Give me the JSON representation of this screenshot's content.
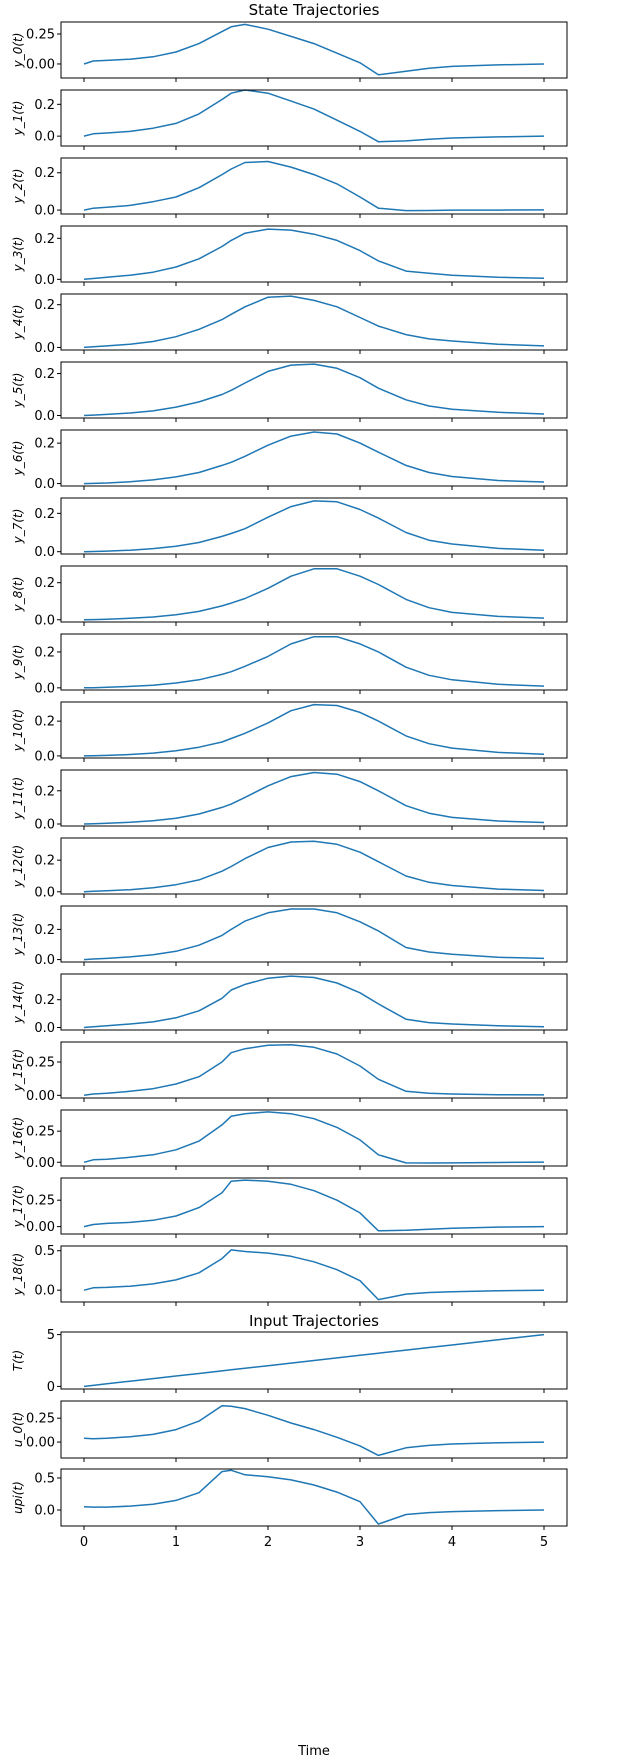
{
  "chart_data": {
    "type": "line",
    "state_title": "State Trajectories",
    "input_title": "Input Trajectories",
    "xlabel": "Time",
    "xlim": [
      -0.25,
      5.25
    ],
    "xticks": [
      0,
      1,
      2,
      3,
      4,
      5
    ],
    "grid": false,
    "line_color": "#1f77b4",
    "x": [
      0,
      0.1,
      0.25,
      0.5,
      0.75,
      1,
      1.25,
      1.5,
      1.6,
      1.75,
      2,
      2.25,
      2.5,
      2.75,
      3,
      3.2,
      3.5,
      3.75,
      4,
      4.5,
      5
    ],
    "panels": [
      {
        "group": "state",
        "ylabel": "y_0(t)",
        "ylim": [
          -0.117,
          0.35
        ],
        "yticks": [
          0,
          0.25
        ],
        "yticklabels": [
          "0.00",
          "0.25"
        ],
        "values": [
          0,
          0.025,
          0.03,
          0.04,
          0.06,
          0.1,
          0.17,
          0.27,
          0.31,
          0.33,
          0.29,
          0.23,
          0.17,
          0.09,
          0.01,
          -0.09,
          -0.06,
          -0.035,
          -0.02,
          -0.008,
          0
        ]
      },
      {
        "group": "state",
        "ylabel": "y_1(t)",
        "ylim": [
          -0.062,
          0.29
        ],
        "yticks": [
          0,
          0.2
        ],
        "yticklabels": [
          "0.0",
          "0.2"
        ],
        "values": [
          0,
          0.015,
          0.02,
          0.03,
          0.05,
          0.08,
          0.14,
          0.23,
          0.27,
          0.29,
          0.27,
          0.22,
          0.17,
          0.1,
          0.03,
          -0.035,
          -0.03,
          -0.02,
          -0.012,
          -0.005,
          0
        ]
      },
      {
        "group": "state",
        "ylabel": "y_2(t)",
        "ylim": [
          -0.021,
          0.279
        ],
        "yticks": [
          0,
          0.2
        ],
        "yticklabels": [
          "0.0",
          "0.2"
        ],
        "values": [
          0,
          0.01,
          0.015,
          0.025,
          0.045,
          0.07,
          0.12,
          0.19,
          0.22,
          0.255,
          0.26,
          0.23,
          0.19,
          0.14,
          0.07,
          0.01,
          -0.003,
          -0.002,
          0,
          0,
          0.001
        ]
      },
      {
        "group": "state",
        "ylabel": "y_3(t)",
        "ylim": [
          -0.013,
          0.26
        ],
        "yticks": [
          0,
          0.2
        ],
        "yticklabels": [
          "0.0",
          "0.2"
        ],
        "values": [
          0,
          0.004,
          0.01,
          0.02,
          0.035,
          0.06,
          0.1,
          0.16,
          0.19,
          0.225,
          0.245,
          0.24,
          0.22,
          0.19,
          0.14,
          0.09,
          0.04,
          0.03,
          0.02,
          0.01,
          0.005
        ]
      },
      {
        "group": "state",
        "ylabel": "y_4(t)",
        "ylim": [
          -0.012,
          0.25
        ],
        "yticks": [
          0,
          0.2
        ],
        "yticklabels": [
          "0.0",
          "0.2"
        ],
        "values": [
          0,
          0.003,
          0.007,
          0.015,
          0.028,
          0.05,
          0.085,
          0.13,
          0.155,
          0.19,
          0.235,
          0.24,
          0.22,
          0.19,
          0.14,
          0.1,
          0.06,
          0.04,
          0.03,
          0.015,
          0.007
        ]
      },
      {
        "group": "state",
        "ylabel": "y_5(t)",
        "ylim": [
          -0.012,
          0.255
        ],
        "yticks": [
          0,
          0.2
        ],
        "yticklabels": [
          "0.0",
          "0.2"
        ],
        "values": [
          0,
          0.002,
          0.005,
          0.012,
          0.022,
          0.04,
          0.065,
          0.1,
          0.12,
          0.155,
          0.21,
          0.24,
          0.245,
          0.225,
          0.18,
          0.13,
          0.075,
          0.045,
          0.03,
          0.015,
          0.007
        ]
      },
      {
        "group": "state",
        "ylabel": "y_6(t)",
        "ylim": [
          -0.012,
          0.265
        ],
        "yticks": [
          0,
          0.2
        ],
        "yticklabels": [
          "0.0",
          "0.2"
        ],
        "values": [
          0,
          0.001,
          0.003,
          0.009,
          0.018,
          0.033,
          0.055,
          0.09,
          0.105,
          0.135,
          0.19,
          0.235,
          0.255,
          0.245,
          0.2,
          0.155,
          0.09,
          0.055,
          0.035,
          0.015,
          0.008
        ]
      },
      {
        "group": "state",
        "ylabel": "y_7(t)",
        "ylim": [
          -0.012,
          0.28
        ],
        "yticks": [
          0,
          0.2
        ],
        "yticklabels": [
          "0.0",
          "0.2"
        ],
        "values": [
          0,
          0.001,
          0.003,
          0.008,
          0.016,
          0.028,
          0.048,
          0.08,
          0.095,
          0.12,
          0.18,
          0.235,
          0.265,
          0.26,
          0.22,
          0.175,
          0.1,
          0.06,
          0.04,
          0.017,
          0.008
        ]
      },
      {
        "group": "state",
        "ylabel": "y_8(t)",
        "ylim": [
          -0.012,
          0.29
        ],
        "yticks": [
          0,
          0.2
        ],
        "yticklabels": [
          "0.0",
          "0.2"
        ],
        "values": [
          0,
          0.001,
          0.003,
          0.008,
          0.015,
          0.027,
          0.045,
          0.075,
          0.09,
          0.115,
          0.17,
          0.235,
          0.275,
          0.275,
          0.235,
          0.19,
          0.11,
          0.065,
          0.04,
          0.018,
          0.009
        ]
      },
      {
        "group": "state",
        "ylabel": "y_9(t)",
        "ylim": [
          -0.012,
          0.3
        ],
        "yticks": [
          0,
          0.2
        ],
        "yticklabels": [
          "0.0",
          "0.2"
        ],
        "values": [
          0,
          0.001,
          0.003,
          0.008,
          0.015,
          0.027,
          0.045,
          0.075,
          0.09,
          0.12,
          0.175,
          0.245,
          0.285,
          0.285,
          0.245,
          0.2,
          0.115,
          0.07,
          0.045,
          0.02,
          0.01
        ]
      },
      {
        "group": "state",
        "ylabel": "y_10(t)",
        "ylim": [
          -0.012,
          0.31
        ],
        "yticks": [
          0,
          0.2
        ],
        "yticklabels": [
          "0.0",
          "0.2"
        ],
        "values": [
          0,
          0.001,
          0.003,
          0.008,
          0.016,
          0.03,
          0.05,
          0.08,
          0.1,
          0.13,
          0.19,
          0.26,
          0.295,
          0.29,
          0.25,
          0.2,
          0.115,
          0.07,
          0.045,
          0.02,
          0.01
        ]
      },
      {
        "group": "state",
        "ylabel": "y_11(t)",
        "ylim": [
          -0.012,
          0.325
        ],
        "yticks": [
          0,
          0.2
        ],
        "yticklabels": [
          "0.0",
          "0.2"
        ],
        "values": [
          0,
          0.002,
          0.004,
          0.01,
          0.02,
          0.035,
          0.06,
          0.1,
          0.12,
          0.16,
          0.23,
          0.285,
          0.31,
          0.3,
          0.255,
          0.2,
          0.11,
          0.065,
          0.04,
          0.018,
          0.009
        ]
      },
      {
        "group": "state",
        "ylabel": "y_12(t)",
        "ylim": [
          -0.014,
          0.34
        ],
        "yticks": [
          0,
          0.2
        ],
        "yticklabels": [
          "0.0",
          "0.2"
        ],
        "values": [
          0,
          0.003,
          0.006,
          0.013,
          0.025,
          0.045,
          0.075,
          0.13,
          0.16,
          0.21,
          0.28,
          0.315,
          0.32,
          0.3,
          0.25,
          0.19,
          0.1,
          0.06,
          0.04,
          0.017,
          0.008
        ]
      },
      {
        "group": "state",
        "ylabel": "y_13(t)",
        "ylim": [
          -0.016,
          0.355
        ],
        "yticks": [
          0,
          0.2
        ],
        "yticklabels": [
          "0.0",
          "0.2"
        ],
        "values": [
          0,
          0.004,
          0.008,
          0.018,
          0.032,
          0.055,
          0.095,
          0.16,
          0.2,
          0.255,
          0.31,
          0.335,
          0.335,
          0.31,
          0.25,
          0.19,
          0.08,
          0.05,
          0.035,
          0.015,
          0.008
        ]
      },
      {
        "group": "state",
        "ylabel": "y_14(t)",
        "ylim": [
          -0.018,
          0.385
        ],
        "yticks": [
          0,
          0.2
        ],
        "yticklabels": [
          "0.0",
          "0.2"
        ],
        "values": [
          0,
          0.006,
          0.012,
          0.025,
          0.04,
          0.07,
          0.12,
          0.21,
          0.27,
          0.31,
          0.355,
          0.37,
          0.36,
          0.32,
          0.25,
          0.17,
          0.06,
          0.035,
          0.025,
          0.012,
          0.006
        ]
      },
      {
        "group": "state",
        "ylabel": "y_15(t)",
        "ylim": [
          -0.02,
          0.4
        ],
        "yticks": [
          0,
          0.25
        ],
        "yticklabels": [
          "0.00",
          "0.25"
        ],
        "values": [
          0,
          0.01,
          0.015,
          0.03,
          0.05,
          0.085,
          0.14,
          0.25,
          0.32,
          0.35,
          0.375,
          0.38,
          0.36,
          0.31,
          0.22,
          0.12,
          0.03,
          0.015,
          0.01,
          0.005,
          0.003
        ]
      },
      {
        "group": "state",
        "ylabel": "y_16(t)",
        "ylim": [
          -0.03,
          0.42
        ],
        "yticks": [
          0,
          0.25
        ],
        "yticklabels": [
          "0.00",
          "0.25"
        ],
        "values": [
          0,
          0.02,
          0.025,
          0.04,
          0.06,
          0.1,
          0.17,
          0.3,
          0.37,
          0.39,
          0.405,
          0.39,
          0.35,
          0.28,
          0.18,
          0.06,
          -0.005,
          -0.006,
          -0.005,
          -0.002,
          0.001
        ]
      },
      {
        "group": "state",
        "ylabel": "y_17(t)",
        "ylim": [
          -0.07,
          0.46
        ],
        "yticks": [
          0,
          0.25
        ],
        "yticklabels": [
          "0.00",
          "0.25"
        ],
        "values": [
          0,
          0.02,
          0.03,
          0.04,
          0.06,
          0.1,
          0.18,
          0.32,
          0.43,
          0.44,
          0.43,
          0.4,
          0.34,
          0.25,
          0.13,
          -0.04,
          -0.035,
          -0.025,
          -0.015,
          -0.005,
          0
        ]
      },
      {
        "group": "state",
        "ylabel": "y_18(t)",
        "ylim": [
          -0.15,
          0.56
        ],
        "yticks": [
          0,
          0.5
        ],
        "yticklabels": [
          "0.0",
          "0.5"
        ],
        "values": [
          0,
          0.03,
          0.035,
          0.05,
          0.08,
          0.13,
          0.22,
          0.4,
          0.51,
          0.49,
          0.47,
          0.43,
          0.36,
          0.26,
          0.12,
          -0.12,
          -0.05,
          -0.03,
          -0.02,
          -0.008,
          0
        ]
      },
      {
        "group": "input",
        "ylabel": "T(t)",
        "ylim": [
          -0.25,
          5.25
        ],
        "yticks": [
          0,
          5
        ],
        "yticklabels": [
          "0",
          "5"
        ],
        "values": [
          0,
          0.1,
          0.25,
          0.5,
          0.75,
          1,
          1.25,
          1.5,
          1.6,
          1.75,
          2,
          2.25,
          2.5,
          2.75,
          3,
          3.2,
          3.5,
          3.75,
          4,
          4.5,
          5
        ]
      },
      {
        "group": "input",
        "ylabel": "u_0(t)",
        "ylim": [
          -0.167,
          0.43
        ],
        "yticks": [
          0,
          0.25
        ],
        "yticklabels": [
          "0.00",
          "0.25"
        ],
        "values": [
          0.04,
          0.035,
          0.04,
          0.055,
          0.08,
          0.13,
          0.22,
          0.38,
          0.375,
          0.35,
          0.28,
          0.2,
          0.13,
          0.05,
          -0.04,
          -0.14,
          -0.06,
          -0.035,
          -0.02,
          -0.008,
          0
        ]
      },
      {
        "group": "input",
        "ylabel": "upi(t)",
        "ylim": [
          -0.25,
          0.64
        ],
        "yticks": [
          0,
          0.5
        ],
        "yticklabels": [
          "0.0",
          "0.5"
        ],
        "values": [
          0.05,
          0.045,
          0.045,
          0.06,
          0.09,
          0.15,
          0.27,
          0.6,
          0.62,
          0.55,
          0.52,
          0.47,
          0.39,
          0.28,
          0.13,
          -0.22,
          -0.07,
          -0.04,
          -0.025,
          -0.01,
          0
        ]
      }
    ]
  }
}
